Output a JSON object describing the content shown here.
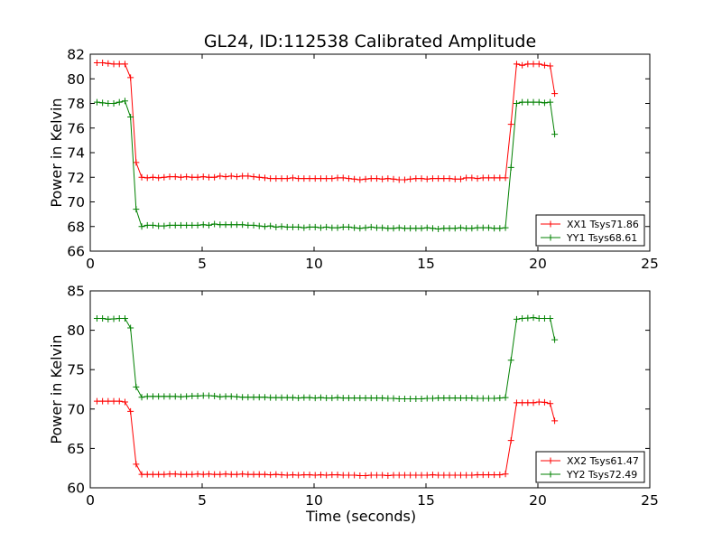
{
  "chart_data": [
    {
      "type": "line",
      "title": "GL24, ID:112538 Calibrated Amplitude",
      "xlabel": "",
      "ylabel": "Power in Kelvin",
      "xlim": [
        0,
        25
      ],
      "ylim": [
        66,
        82
      ],
      "xticks": [
        "0",
        "5",
        "10",
        "15",
        "20",
        "25"
      ],
      "yticks": [
        "66",
        "68",
        "70",
        "72",
        "74",
        "76",
        "78",
        "80",
        "82"
      ],
      "legend_position": "lower-right",
      "series": [
        {
          "name": "XX1 Tsys71.86",
          "color": "#ff0000",
          "x": [
            0.3,
            0.55,
            0.8,
            1.05,
            1.3,
            1.55,
            1.8,
            2.05,
            2.3,
            2.55,
            2.8,
            3.05,
            3.3,
            3.55,
            3.8,
            4.05,
            4.3,
            4.55,
            4.8,
            5.05,
            5.3,
            5.55,
            5.8,
            6.05,
            6.3,
            6.55,
            6.8,
            7.05,
            7.3,
            7.55,
            7.8,
            8.05,
            8.3,
            8.55,
            8.8,
            9.05,
            9.3,
            9.55,
            9.8,
            10.05,
            10.3,
            10.55,
            10.8,
            11.05,
            11.3,
            11.55,
            11.8,
            12.05,
            12.3,
            12.55,
            12.8,
            13.05,
            13.3,
            13.55,
            13.8,
            14.05,
            14.3,
            14.55,
            14.8,
            15.05,
            15.3,
            15.55,
            15.8,
            16.05,
            16.3,
            16.55,
            16.8,
            17.05,
            17.3,
            17.55,
            17.8,
            18.05,
            18.3,
            18.55,
            18.8,
            19.05,
            19.3,
            19.55,
            19.8,
            20.05,
            20.3,
            20.55,
            20.75
          ],
          "y": [
            81.3,
            81.3,
            81.25,
            81.2,
            81.2,
            81.2,
            80.1,
            73.2,
            72.0,
            71.95,
            72.0,
            71.95,
            72.0,
            72.05,
            72.05,
            72.0,
            72.05,
            72.0,
            72.0,
            72.05,
            72.0,
            72.0,
            72.1,
            72.05,
            72.1,
            72.05,
            72.1,
            72.1,
            72.05,
            72.0,
            71.95,
            71.9,
            71.9,
            71.9,
            71.9,
            71.95,
            71.9,
            71.9,
            71.9,
            71.9,
            71.9,
            71.9,
            71.9,
            71.95,
            71.95,
            71.9,
            71.85,
            71.8,
            71.85,
            71.9,
            71.9,
            71.85,
            71.9,
            71.85,
            71.8,
            71.8,
            71.85,
            71.9,
            71.9,
            71.85,
            71.9,
            71.9,
            71.9,
            71.9,
            71.85,
            71.85,
            71.95,
            71.95,
            71.9,
            71.95,
            71.95,
            71.95,
            71.95,
            71.95,
            76.3,
            81.2,
            81.1,
            81.2,
            81.2,
            81.2,
            81.1,
            81.05,
            78.8
          ]
        },
        {
          "name": "YY1 Tsys68.61",
          "color": "#008000",
          "x": [
            0.3,
            0.55,
            0.8,
            1.05,
            1.3,
            1.55,
            1.8,
            2.05,
            2.3,
            2.55,
            2.8,
            3.05,
            3.3,
            3.55,
            3.8,
            4.05,
            4.3,
            4.55,
            4.8,
            5.05,
            5.3,
            5.55,
            5.8,
            6.05,
            6.3,
            6.55,
            6.8,
            7.05,
            7.3,
            7.55,
            7.8,
            8.05,
            8.3,
            8.55,
            8.8,
            9.05,
            9.3,
            9.55,
            9.8,
            10.05,
            10.3,
            10.55,
            10.8,
            11.05,
            11.3,
            11.55,
            11.8,
            12.05,
            12.3,
            12.55,
            12.8,
            13.05,
            13.3,
            13.55,
            13.8,
            14.05,
            14.3,
            14.55,
            14.8,
            15.05,
            15.3,
            15.55,
            15.8,
            16.05,
            16.3,
            16.55,
            16.8,
            17.05,
            17.3,
            17.55,
            17.8,
            18.05,
            18.3,
            18.55,
            18.8,
            19.05,
            19.3,
            19.55,
            19.8,
            20.05,
            20.3,
            20.55,
            20.75
          ],
          "y": [
            78.1,
            78.05,
            78.0,
            78.0,
            78.1,
            78.2,
            76.9,
            69.4,
            68.0,
            68.1,
            68.1,
            68.05,
            68.05,
            68.1,
            68.1,
            68.1,
            68.1,
            68.1,
            68.1,
            68.15,
            68.1,
            68.2,
            68.15,
            68.15,
            68.15,
            68.15,
            68.15,
            68.1,
            68.1,
            68.05,
            68.0,
            68.05,
            67.95,
            68.0,
            67.95,
            67.95,
            67.95,
            67.9,
            67.95,
            67.95,
            67.9,
            67.95,
            67.9,
            67.9,
            67.95,
            67.95,
            67.9,
            67.85,
            67.9,
            67.95,
            67.9,
            67.9,
            67.85,
            67.85,
            67.9,
            67.85,
            67.85,
            67.85,
            67.85,
            67.9,
            67.85,
            67.8,
            67.85,
            67.85,
            67.85,
            67.9,
            67.85,
            67.85,
            67.9,
            67.9,
            67.9,
            67.85,
            67.85,
            67.9,
            72.8,
            78.0,
            78.1,
            78.1,
            78.1,
            78.1,
            78.05,
            78.1,
            75.5
          ]
        }
      ]
    },
    {
      "type": "line",
      "title": "",
      "xlabel": "Time (seconds)",
      "ylabel": "Power in Kelvin",
      "xlim": [
        0,
        25
      ],
      "ylim": [
        60,
        85
      ],
      "xticks": [
        "0",
        "5",
        "10",
        "15",
        "20",
        "25"
      ],
      "yticks": [
        "60",
        "65",
        "70",
        "75",
        "80",
        "85"
      ],
      "legend_position": "lower-right",
      "series": [
        {
          "name": "XX2 Tsys61.47",
          "color": "#ff0000",
          "x": [
            0.3,
            0.55,
            0.8,
            1.05,
            1.3,
            1.55,
            1.8,
            2.05,
            2.3,
            2.55,
            2.8,
            3.05,
            3.3,
            3.55,
            3.8,
            4.05,
            4.3,
            4.55,
            4.8,
            5.05,
            5.3,
            5.55,
            5.8,
            6.05,
            6.3,
            6.55,
            6.8,
            7.05,
            7.3,
            7.55,
            7.8,
            8.05,
            8.3,
            8.55,
            8.8,
            9.05,
            9.3,
            9.55,
            9.8,
            10.05,
            10.3,
            10.55,
            10.8,
            11.05,
            11.3,
            11.55,
            11.8,
            12.05,
            12.3,
            12.55,
            12.8,
            13.05,
            13.3,
            13.55,
            13.8,
            14.05,
            14.3,
            14.55,
            14.8,
            15.05,
            15.3,
            15.55,
            15.8,
            16.05,
            16.3,
            16.55,
            16.8,
            17.05,
            17.3,
            17.55,
            17.8,
            18.05,
            18.3,
            18.55,
            18.8,
            19.05,
            19.3,
            19.55,
            19.8,
            20.05,
            20.3,
            20.55,
            20.75
          ],
          "y": [
            71.0,
            71.0,
            71.0,
            71.0,
            71.0,
            70.9,
            69.7,
            63.0,
            61.7,
            61.7,
            61.7,
            61.7,
            61.7,
            61.75,
            61.75,
            61.7,
            61.7,
            61.7,
            61.75,
            61.7,
            61.75,
            61.7,
            61.7,
            61.75,
            61.7,
            61.7,
            61.75,
            61.7,
            61.7,
            61.7,
            61.7,
            61.65,
            61.7,
            61.65,
            61.6,
            61.65,
            61.6,
            61.65,
            61.65,
            61.6,
            61.65,
            61.6,
            61.65,
            61.65,
            61.6,
            61.6,
            61.6,
            61.55,
            61.55,
            61.6,
            61.6,
            61.6,
            61.55,
            61.6,
            61.6,
            61.6,
            61.6,
            61.6,
            61.6,
            61.6,
            61.65,
            61.6,
            61.6,
            61.6,
            61.6,
            61.6,
            61.6,
            61.6,
            61.65,
            61.65,
            61.65,
            61.65,
            61.65,
            61.75,
            66.0,
            70.8,
            70.8,
            70.8,
            70.8,
            70.9,
            70.85,
            70.7,
            68.5
          ]
        },
        {
          "name": "YY2 Tsys72.49",
          "color": "#008000",
          "x": [
            0.3,
            0.55,
            0.8,
            1.05,
            1.3,
            1.55,
            1.8,
            2.05,
            2.3,
            2.55,
            2.8,
            3.05,
            3.3,
            3.55,
            3.8,
            4.05,
            4.3,
            4.55,
            4.8,
            5.05,
            5.3,
            5.55,
            5.8,
            6.05,
            6.3,
            6.55,
            6.8,
            7.05,
            7.3,
            7.55,
            7.8,
            8.05,
            8.3,
            8.55,
            8.8,
            9.05,
            9.3,
            9.55,
            9.8,
            10.05,
            10.3,
            10.55,
            10.8,
            11.05,
            11.3,
            11.55,
            11.8,
            12.05,
            12.3,
            12.55,
            12.8,
            13.05,
            13.3,
            13.55,
            13.8,
            14.05,
            14.3,
            14.55,
            14.8,
            15.05,
            15.3,
            15.55,
            15.8,
            16.05,
            16.3,
            16.55,
            16.8,
            17.05,
            17.3,
            17.55,
            17.8,
            18.05,
            18.3,
            18.55,
            18.8,
            19.05,
            19.3,
            19.55,
            19.8,
            20.05,
            20.3,
            20.55,
            20.75
          ],
          "y": [
            81.5,
            81.5,
            81.4,
            81.45,
            81.5,
            81.5,
            80.3,
            72.8,
            71.5,
            71.6,
            71.6,
            71.6,
            71.6,
            71.6,
            71.6,
            71.55,
            71.6,
            71.65,
            71.65,
            71.7,
            71.7,
            71.65,
            71.55,
            71.6,
            71.6,
            71.55,
            71.5,
            71.5,
            71.5,
            71.5,
            71.5,
            71.45,
            71.45,
            71.45,
            71.45,
            71.45,
            71.4,
            71.45,
            71.45,
            71.4,
            71.45,
            71.4,
            71.4,
            71.45,
            71.4,
            71.4,
            71.4,
            71.4,
            71.4,
            71.4,
            71.4,
            71.4,
            71.35,
            71.35,
            71.3,
            71.3,
            71.3,
            71.3,
            71.3,
            71.35,
            71.35,
            71.4,
            71.4,
            71.4,
            71.4,
            71.4,
            71.4,
            71.4,
            71.35,
            71.35,
            71.35,
            71.35,
            71.4,
            71.45,
            76.2,
            81.4,
            81.5,
            81.55,
            81.6,
            81.5,
            81.5,
            81.5,
            78.8
          ]
        }
      ]
    }
  ]
}
